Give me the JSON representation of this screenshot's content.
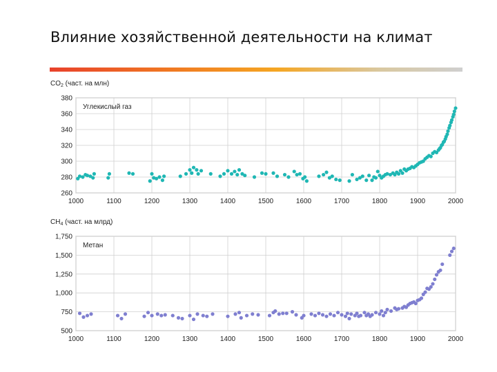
{
  "slide": {
    "title": "Влияние хозяйственной деятельности на климат",
    "bar_colors": [
      "#e8412b",
      "#f5a623",
      "#cfcfcf"
    ]
  },
  "chart_data": [
    {
      "type": "scatter",
      "ylabel_prefix": "CO",
      "ylabel_sub": "2",
      "ylabel_suffix": " (част. на млн)",
      "series_label": "Углекислый газ",
      "color": "#1fb7b4",
      "xlim": [
        1000,
        2000
      ],
      "ylim": [
        260,
        380
      ],
      "x_ticks": [
        "1000",
        "1100",
        "1200",
        "1300",
        "1400",
        "1500",
        "1600",
        "1700",
        "1800",
        "1900",
        "2000"
      ],
      "y_ticks": [
        "380",
        "360",
        "340",
        "320",
        "300",
        "280",
        "260"
      ],
      "y_tick_values": [
        380,
        360,
        340,
        320,
        300,
        280,
        260
      ],
      "grid": true,
      "points": [
        [
          1005,
          278
        ],
        [
          1010,
          281
        ],
        [
          1018,
          280
        ],
        [
          1025,
          283
        ],
        [
          1030,
          282
        ],
        [
          1038,
          281
        ],
        [
          1045,
          279
        ],
        [
          1048,
          284
        ],
        [
          1085,
          279
        ],
        [
          1088,
          284
        ],
        [
          1140,
          285
        ],
        [
          1150,
          284
        ],
        [
          1195,
          275
        ],
        [
          1200,
          284
        ],
        [
          1205,
          279
        ],
        [
          1212,
          278
        ],
        [
          1220,
          280
        ],
        [
          1228,
          276
        ],
        [
          1232,
          281
        ],
        [
          1275,
          281
        ],
        [
          1290,
          284
        ],
        [
          1300,
          289
        ],
        [
          1305,
          285
        ],
        [
          1310,
          292
        ],
        [
          1318,
          289
        ],
        [
          1322,
          284
        ],
        [
          1330,
          288
        ],
        [
          1355,
          284
        ],
        [
          1380,
          281
        ],
        [
          1390,
          284
        ],
        [
          1400,
          288
        ],
        [
          1410,
          284
        ],
        [
          1418,
          287
        ],
        [
          1425,
          283
        ],
        [
          1430,
          289
        ],
        [
          1438,
          284
        ],
        [
          1445,
          282
        ],
        [
          1470,
          280
        ],
        [
          1490,
          285
        ],
        [
          1500,
          284
        ],
        [
          1520,
          285
        ],
        [
          1530,
          281
        ],
        [
          1550,
          283
        ],
        [
          1560,
          280
        ],
        [
          1575,
          287
        ],
        [
          1582,
          283
        ],
        [
          1590,
          284
        ],
        [
          1598,
          278
        ],
        [
          1603,
          280
        ],
        [
          1608,
          275
        ],
        [
          1640,
          281
        ],
        [
          1652,
          283
        ],
        [
          1660,
          286
        ],
        [
          1668,
          279
        ],
        [
          1675,
          281
        ],
        [
          1685,
          277
        ],
        [
          1695,
          276
        ],
        [
          1720,
          275
        ],
        [
          1728,
          283
        ],
        [
          1740,
          277
        ],
        [
          1748,
          279
        ],
        [
          1755,
          281
        ],
        [
          1765,
          276
        ],
        [
          1772,
          282
        ],
        [
          1780,
          276
        ],
        [
          1785,
          280
        ],
        [
          1790,
          279
        ],
        [
          1795,
          287
        ],
        [
          1800,
          282
        ],
        [
          1805,
          279
        ],
        [
          1810,
          281
        ],
        [
          1815,
          283
        ],
        [
          1820,
          284
        ],
        [
          1828,
          283
        ],
        [
          1835,
          285
        ],
        [
          1840,
          283
        ],
        [
          1845,
          286
        ],
        [
          1850,
          284
        ],
        [
          1855,
          288
        ],
        [
          1860,
          285
        ],
        [
          1865,
          290
        ],
        [
          1870,
          288
        ],
        [
          1875,
          290
        ],
        [
          1880,
          291
        ],
        [
          1885,
          293
        ],
        [
          1890,
          292
        ],
        [
          1895,
          294
        ],
        [
          1900,
          296
        ],
        [
          1905,
          298
        ],
        [
          1910,
          299
        ],
        [
          1915,
          300
        ],
        [
          1920,
          303
        ],
        [
          1925,
          305
        ],
        [
          1930,
          307
        ],
        [
          1935,
          306
        ],
        [
          1940,
          310
        ],
        [
          1945,
          312
        ],
        [
          1950,
          311
        ],
        [
          1955,
          314
        ],
        [
          1958,
          316
        ],
        [
          1960,
          317
        ],
        [
          1963,
          320
        ],
        [
          1965,
          321
        ],
        [
          1968,
          324
        ],
        [
          1970,
          325
        ],
        [
          1973,
          328
        ],
        [
          1975,
          331
        ],
        [
          1978,
          334
        ],
        [
          1980,
          338
        ],
        [
          1983,
          342
        ],
        [
          1985,
          345
        ],
        [
          1988,
          349
        ],
        [
          1990,
          352
        ],
        [
          1993,
          356
        ],
        [
          1995,
          359
        ],
        [
          1997,
          363
        ],
        [
          2000,
          367
        ]
      ]
    },
    {
      "type": "scatter",
      "ylabel_prefix": "CH",
      "ylabel_sub": "4",
      "ylabel_suffix": " (част. на млрд)",
      "series_label": "Метан",
      "color": "#7f7fd0",
      "xlim": [
        1000,
        2000
      ],
      "ylim": [
        500,
        1750
      ],
      "x_ticks": [
        "1000",
        "1100",
        "1200",
        "1300",
        "1400",
        "1500",
        "1600",
        "1700",
        "1800",
        "1900",
        "2000"
      ],
      "y_ticks": [
        "1,750",
        "1,500",
        "1,250",
        "1,000",
        "750",
        "500"
      ],
      "y_tick_values": [
        1750,
        1500,
        1250,
        1000,
        750,
        500
      ],
      "grid": true,
      "points": [
        [
          1010,
          730
        ],
        [
          1020,
          680
        ],
        [
          1030,
          700
        ],
        [
          1040,
          720
        ],
        [
          1110,
          700
        ],
        [
          1120,
          660
        ],
        [
          1130,
          720
        ],
        [
          1180,
          690
        ],
        [
          1190,
          740
        ],
        [
          1200,
          700
        ],
        [
          1215,
          720
        ],
        [
          1225,
          700
        ],
        [
          1235,
          710
        ],
        [
          1255,
          700
        ],
        [
          1270,
          670
        ],
        [
          1280,
          660
        ],
        [
          1300,
          700
        ],
        [
          1310,
          650
        ],
        [
          1320,
          720
        ],
        [
          1335,
          700
        ],
        [
          1345,
          690
        ],
        [
          1360,
          720
        ],
        [
          1400,
          690
        ],
        [
          1420,
          720
        ],
        [
          1430,
          740
        ],
        [
          1435,
          670
        ],
        [
          1450,
          700
        ],
        [
          1465,
          720
        ],
        [
          1480,
          710
        ],
        [
          1510,
          700
        ],
        [
          1520,
          740
        ],
        [
          1525,
          760
        ],
        [
          1535,
          720
        ],
        [
          1545,
          730
        ],
        [
          1555,
          730
        ],
        [
          1570,
          750
        ],
        [
          1580,
          710
        ],
        [
          1595,
          670
        ],
        [
          1600,
          700
        ],
        [
          1620,
          720
        ],
        [
          1630,
          700
        ],
        [
          1640,
          730
        ],
        [
          1650,
          710
        ],
        [
          1660,
          690
        ],
        [
          1670,
          720
        ],
        [
          1680,
          700
        ],
        [
          1690,
          740
        ],
        [
          1700,
          710
        ],
        [
          1710,
          690
        ],
        [
          1715,
          730
        ],
        [
          1720,
          660
        ],
        [
          1725,
          720
        ],
        [
          1735,
          700
        ],
        [
          1740,
          730
        ],
        [
          1745,
          690
        ],
        [
          1750,
          700
        ],
        [
          1760,
          740
        ],
        [
          1765,
          700
        ],
        [
          1770,
          720
        ],
        [
          1775,
          690
        ],
        [
          1780,
          710
        ],
        [
          1790,
          740
        ],
        [
          1800,
          720
        ],
        [
          1805,
          760
        ],
        [
          1810,
          700
        ],
        [
          1815,
          740
        ],
        [
          1820,
          780
        ],
        [
          1830,
          760
        ],
        [
          1840,
          800
        ],
        [
          1845,
          780
        ],
        [
          1850,
          790
        ],
        [
          1860,
          800
        ],
        [
          1865,
          820
        ],
        [
          1870,
          810
        ],
        [
          1875,
          840
        ],
        [
          1880,
          860
        ],
        [
          1885,
          870
        ],
        [
          1890,
          880
        ],
        [
          1895,
          860
        ],
        [
          1900,
          900
        ],
        [
          1905,
          910
        ],
        [
          1910,
          930
        ],
        [
          1915,
          980
        ],
        [
          1920,
          1010
        ],
        [
          1925,
          1060
        ],
        [
          1930,
          1050
        ],
        [
          1935,
          1080
        ],
        [
          1940,
          1120
        ],
        [
          1945,
          1180
        ],
        [
          1950,
          1240
        ],
        [
          1955,
          1280
        ],
        [
          1960,
          1300
        ],
        [
          1965,
          1380
        ],
        [
          1985,
          1500
        ],
        [
          1990,
          1550
        ],
        [
          1995,
          1590
        ]
      ]
    }
  ]
}
